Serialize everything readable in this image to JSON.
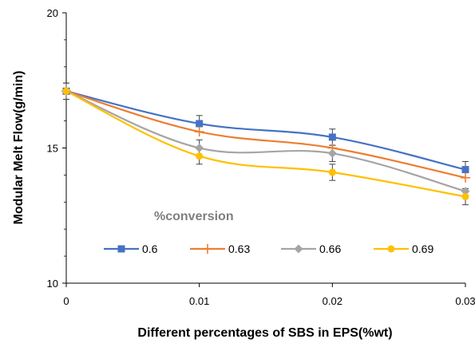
{
  "chart_data": {
    "type": "line",
    "title": "",
    "xlabel": "Different percentages of SBS in EPS(%wt)",
    "ylabel": "Modular Melt Flow(g/min)",
    "x": [
      0,
      0.01,
      0.02,
      0.03
    ],
    "x_tick_labels": [
      "0",
      "0.01",
      "0.02",
      "0.03"
    ],
    "y_ticks": [
      10,
      15,
      20
    ],
    "y_tick_labels": [
      "10",
      "15",
      "20"
    ],
    "xlim": [
      0,
      0.03
    ],
    "ylim": [
      10,
      20
    ],
    "grid": false,
    "legend": {
      "title": "%conversion",
      "placement": "bottom-center-inside"
    },
    "series": [
      {
        "name": "0.6",
        "color": "#4472c4",
        "marker": "square",
        "values": [
          17.1,
          15.9,
          15.4,
          14.2
        ],
        "errors": [
          0.3,
          0.3,
          0.3,
          0.3
        ]
      },
      {
        "name": "0.63",
        "color": "#ed7d31",
        "marker": "plus",
        "values": [
          17.1,
          15.6,
          15.0,
          13.9
        ],
        "errors": [
          0,
          0,
          0,
          0
        ]
      },
      {
        "name": "0.66",
        "color": "#a5a5a5",
        "marker": "diamond",
        "values": [
          17.1,
          15.0,
          14.8,
          13.4
        ],
        "errors": [
          0,
          0.3,
          0.3,
          0
        ]
      },
      {
        "name": "0.69",
        "color": "#ffc000",
        "marker": "circle",
        "values": [
          17.1,
          14.7,
          14.1,
          13.2
        ],
        "errors": [
          0.3,
          0.3,
          0.3,
          0.3
        ]
      }
    ]
  }
}
